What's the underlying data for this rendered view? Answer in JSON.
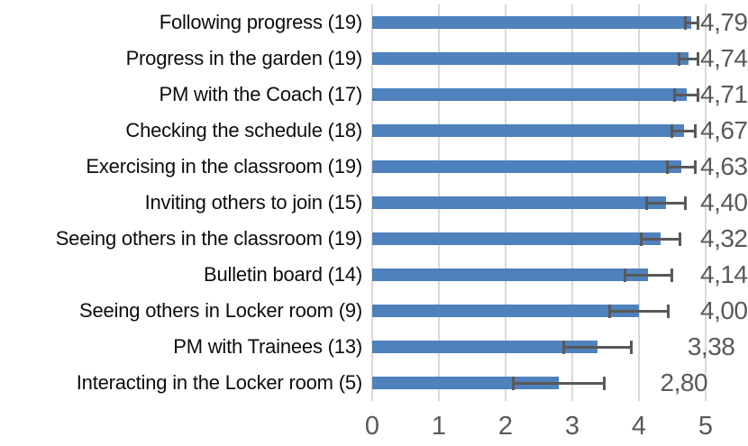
{
  "chart_data": {
    "type": "bar",
    "orientation": "horizontal",
    "title": "",
    "xlabel": "",
    "ylabel": "",
    "xlim": [
      0,
      5
    ],
    "x_ticks": [
      "0",
      "1",
      "2",
      "3",
      "4",
      "5"
    ],
    "grid": true,
    "legend": false,
    "decimal_separator": ",",
    "categories": [
      "Following progress (19)",
      "Progress in the garden (19)",
      "PM with the Coach (17)",
      "Checking the schedule (18)",
      "Exercising in the classroom (19)",
      "Inviting others to join (15)",
      "Seeing others in the classroom (19)",
      "Bulletin board (14)",
      "Seeing others in Locker room (9)",
      "PM with Trainees (13)",
      "Interacting in the Locker room (5)"
    ],
    "values": [
      4.79,
      4.74,
      4.71,
      4.67,
      4.63,
      4.4,
      4.32,
      4.14,
      4.0,
      3.38,
      2.8
    ],
    "value_labels": [
      "4,79",
      "4,74",
      "4,71",
      "4,67",
      "4,63",
      "4,40",
      "4,32",
      "4,14",
      "4,00",
      "3,38",
      "2,80"
    ],
    "errors": [
      0.1,
      0.14,
      0.18,
      0.18,
      0.21,
      0.29,
      0.29,
      0.35,
      0.44,
      0.51,
      0.68
    ],
    "colors": {
      "bar": "#4f81bd",
      "error_bar": "#595959",
      "gridline": "#d9d9d9",
      "category_text": "#0d0d0d",
      "value_text": "#595959",
      "tick_text": "#595959"
    }
  }
}
